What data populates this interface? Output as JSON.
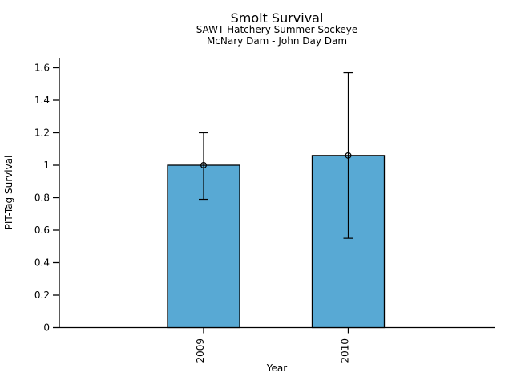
{
  "chart_data": {
    "type": "bar",
    "title": "Smolt Survival",
    "subtitle1": "SAWT Hatchery Summer Sockeye",
    "subtitle2": "McNary Dam - John Day Dam",
    "xlabel": "Year",
    "ylabel": "PIT-Tag Survival",
    "categories": [
      "2009",
      "2010"
    ],
    "values": [
      1.0,
      1.06
    ],
    "error_bars": [
      {
        "low": 0.79,
        "high": 1.2
      },
      {
        "low": 0.55,
        "high": 1.57
      }
    ],
    "marker": "open-circle",
    "ylim": [
      0,
      1.6
    ],
    "ytick_labels": [
      "0",
      "0.2",
      "0.4",
      "0.6",
      "0.8",
      "1",
      "1.2",
      "1.4",
      "1.6"
    ],
    "grid": false,
    "legend": false,
    "colors": {
      "bar_fill": "#58a9d4",
      "bar_stroke": "#000000",
      "error_bar": "#000000",
      "axis": "#000000",
      "text": "#000000",
      "background": "#ffffff"
    }
  }
}
